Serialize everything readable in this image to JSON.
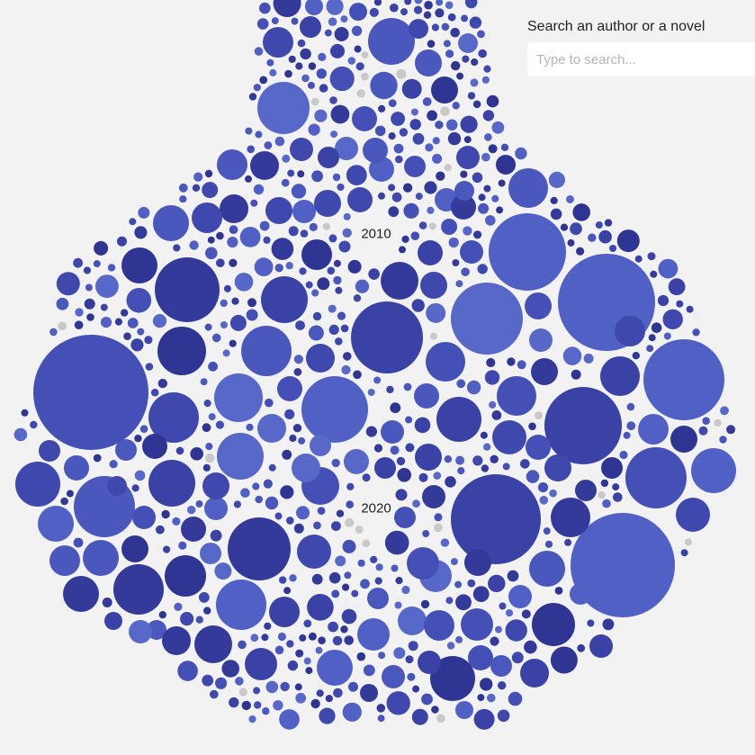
{
  "search": {
    "title": "Search an author or a novel",
    "placeholder": "Type to search...",
    "value": ""
  },
  "decades": [
    {
      "label": "2010"
    },
    {
      "label": "2020"
    }
  ],
  "colors": {
    "background": "#f2f2f2",
    "bubble_palette": [
      "#2f3592",
      "#343a9a",
      "#3a42a6",
      "#3e48ad",
      "#4450b5",
      "#4a57bd",
      "#5060c4",
      "#5868c8"
    ],
    "bubble_faded": "#c9c9c9"
  }
}
